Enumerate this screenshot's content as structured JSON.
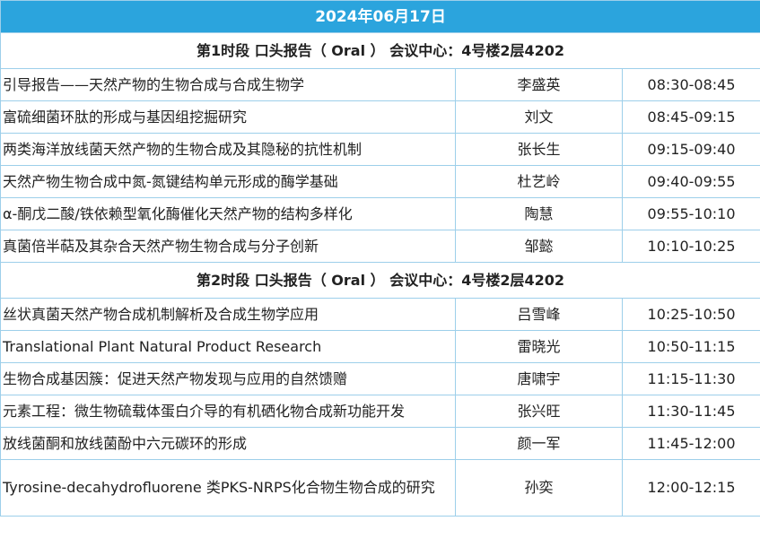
{
  "header": {
    "title": "2024年06月17日"
  },
  "sessions": [
    {
      "title": "第1时段 口头报告（ Oral ） 会议中心：4号楼2层4202",
      "talks": [
        {
          "title": "引导报告——天然产物的生物合成与合成生物学",
          "speaker": "李盛英",
          "time": "08:30-08:45"
        },
        {
          "title": "富硫细菌环肽的形成与基因组挖掘研究",
          "speaker": "刘文",
          "time": "08:45-09:15"
        },
        {
          "title": "两类海洋放线菌天然产物的生物合成及其隐秘的抗性机制",
          "speaker": "张长生",
          "time": "09:15-09:40"
        },
        {
          "title": "天然产物生物合成中氮-氮键结构单元形成的酶学基础",
          "speaker": "杜艺岭",
          "time": "09:40-09:55"
        },
        {
          "title": "α-酮戊二酸/铁依赖型氧化酶催化天然产物的结构多样化",
          "speaker": "陶慧",
          "time": "09:55-10:10"
        },
        {
          "title": "真菌倍半萜及其杂合天然产物生物合成与分子创新",
          "speaker": "邹懿",
          "time": "10:10-10:25"
        }
      ]
    },
    {
      "title": "第2时段 口头报告（ Oral ） 会议中心：4号楼2层4202",
      "talks": [
        {
          "title": "丝状真菌天然产物合成机制解析及合成生物学应用",
          "speaker": "吕雪峰",
          "time": "10:25-10:50"
        },
        {
          "title": "Translational Plant Natural Product Research",
          "speaker": "雷晓光",
          "time": "10:50-11:15"
        },
        {
          "title": "生物合成基因簇：促进天然产物发现与应用的自然馈赠",
          "speaker": "唐啸宇",
          "time": "11:15-11:30"
        },
        {
          "title": "元素工程：微生物硫载体蛋白介导的有机硒化物合成新功能开发",
          "speaker": "张兴旺",
          "time": "11:30-11:45"
        },
        {
          "title": "放线菌酮和放线菌酚中六元碳环的形成",
          "speaker": "颜一军",
          "time": "11:45-12:00"
        },
        {
          "title": "Tyrosine-decahydrofluorene 类PKS-NRPS化合物生物合成的研究",
          "speaker": "孙奕",
          "time": "12:00-12:15"
        }
      ]
    }
  ]
}
